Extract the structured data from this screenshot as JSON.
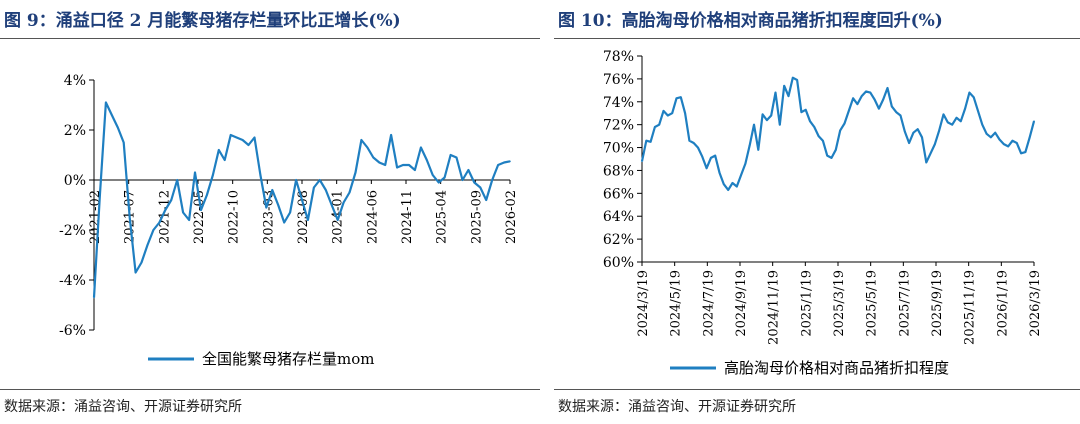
{
  "charts": [
    {
      "title": "图 9：涌益口径 2 月能繁母猪存栏量环比正增长(%)",
      "source": "数据来源：涌益咨询、开源证券研究所"
    },
    {
      "title": "图 10：高胎淘母价格相对商品猪折扣程度回升(%)",
      "source": "数据来源：涌益咨询、开源证券研究所"
    }
  ],
  "colors": {
    "series": "#1f7fc1",
    "title": "#1f3f7a",
    "axis": "#000000"
  },
  "chart_data": [
    {
      "type": "line",
      "title": "图 9：涌益口径 2 月能繁母猪存栏量环比正增长(%)",
      "xlabel": "",
      "ylabel": "",
      "ylim": [
        -6,
        4
      ],
      "y_ticks": [
        4,
        2,
        0,
        -2,
        -4,
        -6
      ],
      "y_tick_labels": [
        "4%",
        "2%",
        "0%",
        "-2%",
        "-4%",
        "-6%"
      ],
      "x_tick_labels": [
        "2021-02",
        "2021-07",
        "2021-12",
        "2022-05",
        "2022-10",
        "2023-03",
        "2023-08",
        "2024-01",
        "2024-06",
        "2024-11",
        "2025-04",
        "2025-09",
        "2026-02"
      ],
      "legend": "bottom-center",
      "series": [
        {
          "name": "全国能繁母猪存栏量mom",
          "values": [
            -4.7,
            -0.6,
            3.1,
            2.6,
            2.1,
            1.5,
            -1.5,
            -3.7,
            -3.3,
            -2.6,
            -2.0,
            -1.7,
            -1.2,
            -0.8,
            0.0,
            -1.3,
            -1.6,
            0.3,
            -1.2,
            -0.6,
            0.2,
            1.2,
            0.8,
            1.8,
            1.7,
            1.6,
            1.4,
            1.7,
            0.2,
            -1.1,
            -0.4,
            -1.0,
            -1.7,
            -1.3,
            0.0,
            -0.8,
            -1.6,
            -0.3,
            0.0,
            -0.4,
            -1.0,
            -1.6,
            -0.9,
            -0.5,
            0.3,
            1.6,
            1.3,
            0.9,
            0.7,
            0.6,
            1.8,
            0.5,
            0.6,
            0.6,
            0.4,
            1.3,
            0.8,
            0.2,
            -0.1,
            0.1,
            1.0,
            0.9,
            0.0,
            0.4,
            -0.1,
            -0.3,
            -0.8,
            0.0,
            0.6,
            0.7,
            0.75
          ]
        }
      ]
    },
    {
      "type": "line",
      "title": "图 10：高胎淘母价格相对商品猪折扣程度回升(%)",
      "xlabel": "",
      "ylabel": "",
      "ylim": [
        60,
        78
      ],
      "y_ticks": [
        78,
        76,
        74,
        72,
        70,
        68,
        66,
        64,
        62,
        60
      ],
      "y_tick_labels": [
        "78%",
        "76%",
        "74%",
        "72%",
        "70%",
        "68%",
        "66%",
        "64%",
        "62%",
        "60%"
      ],
      "x_tick_labels": [
        "2024/3/19",
        "2024/5/19",
        "2024/7/19",
        "2024/9/19",
        "2024/11/19",
        "2025/1/19",
        "2025/3/19",
        "2025/5/19",
        "2025/7/19",
        "2025/9/19",
        "2025/11/19",
        "2026/1/19",
        "2026/3/19"
      ],
      "legend": "bottom-center",
      "series": [
        {
          "name": "高胎淘母价格相对商品猪折扣程度",
          "values": [
            68.8,
            70.6,
            70.5,
            71.8,
            72.0,
            73.2,
            72.8,
            73.0,
            74.3,
            74.4,
            73.0,
            70.6,
            70.4,
            70.0,
            69.2,
            68.2,
            69.1,
            69.3,
            67.8,
            66.8,
            66.3,
            66.9,
            66.6,
            67.6,
            68.6,
            70.2,
            72.0,
            69.8,
            72.9,
            72.4,
            72.8,
            74.8,
            72.0,
            75.4,
            74.5,
            76.1,
            75.9,
            73.1,
            73.3,
            72.3,
            71.8,
            71.0,
            70.6,
            69.3,
            69.1,
            69.8,
            71.5,
            72.1,
            73.2,
            74.3,
            73.8,
            74.5,
            74.9,
            74.8,
            74.2,
            73.4,
            74.2,
            75.2,
            73.6,
            73.1,
            72.8,
            71.4,
            70.4,
            71.3,
            71.6,
            70.9,
            68.7,
            69.5,
            70.3,
            71.5,
            72.9,
            72.2,
            72.0,
            72.6,
            72.3,
            73.4,
            74.8,
            74.4,
            73.2,
            72.0,
            71.2,
            70.9,
            71.3,
            70.7,
            70.3,
            70.1,
            70.6,
            70.4,
            69.5,
            69.6,
            70.9,
            72.3
          ]
        }
      ]
    }
  ]
}
